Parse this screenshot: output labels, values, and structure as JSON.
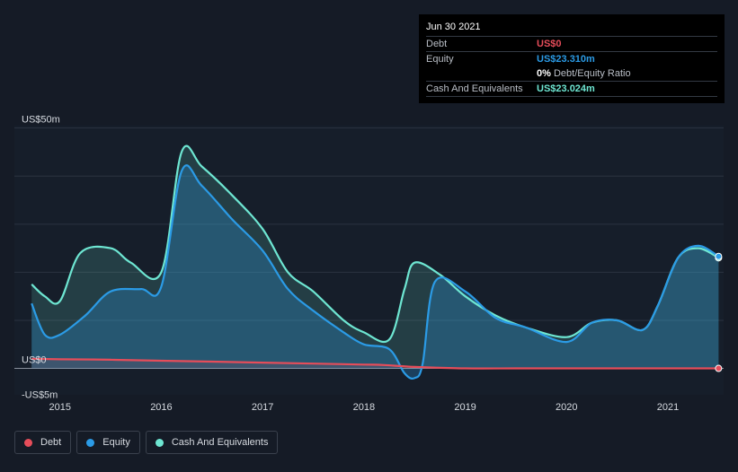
{
  "tooltip": {
    "date": "Jun 30 2021",
    "rows": [
      {
        "label": "Debt",
        "value": "US$0",
        "color": "#e64d5a"
      },
      {
        "label": "Equity",
        "value": "US$23.310m",
        "color": "#2b9be6"
      },
      {
        "label": "Cash And Equivalents",
        "value": "US$23.024m",
        "color": "#6ee6d2"
      }
    ],
    "ratio_value": "0%",
    "ratio_label": "Debt/Equity Ratio"
  },
  "legend": [
    {
      "label": "Debt",
      "color": "#e64d5a"
    },
    {
      "label": "Equity",
      "color": "#2b9be6"
    },
    {
      "label": "Cash And Equivalents",
      "color": "#6ee6d2"
    }
  ],
  "chart_data": {
    "type": "area",
    "title": "",
    "xlabel": "",
    "ylabel": "",
    "y_tick_labels": [
      {
        "value": 50,
        "label": "US$50m"
      },
      {
        "value": 0,
        "label": "US$0"
      },
      {
        "value": -5,
        "label": "-US$5m"
      }
    ],
    "x_tick_labels": [
      "2015",
      "2016",
      "2017",
      "2018",
      "2019",
      "2020",
      "2021"
    ],
    "x_ticks": [
      2015,
      2016,
      2017,
      2018,
      2019,
      2020,
      2021
    ],
    "xlim": [
      2014.55,
      2021.55
    ],
    "ylim": [
      -5.5,
      50.5
    ],
    "gridlines": [
      10,
      20,
      30,
      40,
      50
    ],
    "series": [
      {
        "name": "Cash And Equivalents",
        "color": "#6ee6d2",
        "x": [
          2014.72,
          2014.85,
          2015.0,
          2015.2,
          2015.5,
          2015.7,
          2016.0,
          2016.2,
          2016.4,
          2016.7,
          2017.0,
          2017.25,
          2017.5,
          2017.8,
          2018.0,
          2018.25,
          2018.4,
          2018.5,
          2018.75,
          2019.0,
          2019.3,
          2019.6,
          2020.0,
          2020.25,
          2020.5,
          2020.75,
          2020.9,
          2021.1,
          2021.3,
          2021.5
        ],
        "values": [
          17.5,
          15,
          14,
          24,
          25,
          22,
          20,
          45,
          42,
          36,
          29,
          20,
          16,
          10,
          7.5,
          6,
          16.5,
          22,
          19.5,
          15,
          11,
          8.5,
          6.5,
          9.5,
          10,
          8,
          13,
          23,
          25,
          23.0
        ]
      },
      {
        "name": "Equity",
        "color": "#2b9be6",
        "x": [
          2014.72,
          2014.85,
          2015.0,
          2015.25,
          2015.5,
          2015.8,
          2016.0,
          2016.2,
          2016.4,
          2016.7,
          2017.0,
          2017.25,
          2017.5,
          2017.8,
          2018.0,
          2018.25,
          2018.4,
          2018.5,
          2018.58,
          2018.7,
          2019.0,
          2019.3,
          2019.6,
          2020.0,
          2020.25,
          2020.5,
          2020.75,
          2020.9,
          2021.1,
          2021.3,
          2021.5
        ],
        "values": [
          13.5,
          7,
          7,
          11,
          16,
          16.5,
          17,
          41,
          38,
          31,
          24.5,
          16.5,
          12,
          7.5,
          5,
          4,
          -1,
          -2,
          1,
          18,
          16,
          10.5,
          8.5,
          5.5,
          9.5,
          10,
          8,
          13,
          23,
          25.5,
          23.3
        ]
      },
      {
        "name": "Debt",
        "color": "#e64d5a",
        "x": [
          2014.72,
          2015.0,
          2015.5,
          2016.0,
          2016.5,
          2017.0,
          2017.5,
          2018.0,
          2018.2,
          2018.5,
          2019.0,
          2019.5,
          2020.0,
          2020.5,
          2021.0,
          2021.5
        ],
        "values": [
          2.0,
          1.9,
          1.8,
          1.6,
          1.4,
          1.2,
          1.0,
          0.8,
          0.7,
          0.3,
          0,
          0,
          0,
          0,
          0,
          0
        ]
      }
    ]
  }
}
